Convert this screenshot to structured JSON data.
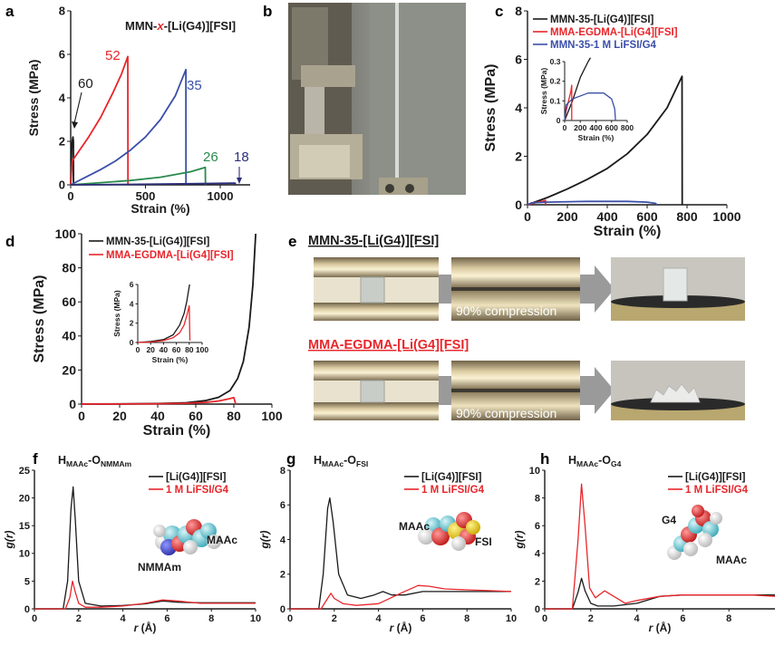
{
  "panel_letters": [
    "a",
    "b",
    "c",
    "d",
    "e",
    "f",
    "g",
    "h"
  ],
  "colors": {
    "black": "#1a1a1a",
    "red": "#e8262b",
    "blue": "#3a4fa8",
    "green": "#2a8a4e",
    "navy": "#2d2f7a"
  },
  "photo_e": {
    "title_top": "MMN-35-[Li(G4)][FSI]",
    "title_bottom": "MMA-EGDMA-[Li(G4][FSI]",
    "compression_label_top": "90% compression",
    "compression_label_bottom": "90% compression"
  },
  "chart_data": [
    {
      "panel": "a",
      "type": "line",
      "title_prefix": "MMN-",
      "title_x": "x",
      "title_suffix": "-[Li(G4)][FSI]",
      "xlabel": "Strain (%)",
      "ylabel": "Stress (MPa)",
      "xlim": [
        0,
        1200
      ],
      "ylim": [
        0,
        8
      ],
      "xticks": [
        0,
        500,
        1000
      ],
      "xtick_labels": [
        "0",
        "500",
        "1000"
      ],
      "yticks": [
        0,
        2,
        4,
        6,
        8
      ],
      "ytick_labels": [
        "0",
        "2",
        "4",
        "6",
        "8"
      ],
      "series": [
        {
          "name": "60",
          "color": "#1a1a1a",
          "x": [
            0,
            8,
            15,
            18,
            19
          ],
          "y": [
            0,
            1.9,
            2.2,
            2.0,
            0
          ]
        },
        {
          "name": "52",
          "color": "#e8262b",
          "x": [
            0,
            10,
            60,
            120,
            200,
            280,
            340,
            382,
            383
          ],
          "y": [
            0,
            1.1,
            1.6,
            2.2,
            3.1,
            4.2,
            5.1,
            5.9,
            0
          ]
        },
        {
          "name": "35",
          "color": "#3a4fa8",
          "x": [
            0,
            100,
            200,
            300,
            400,
            500,
            600,
            700,
            770,
            771
          ],
          "y": [
            0,
            0.35,
            0.7,
            1.1,
            1.6,
            2.2,
            3.0,
            4.1,
            5.3,
            0
          ]
        },
        {
          "name": "26",
          "color": "#2a8a4e",
          "x": [
            0,
            200,
            400,
            600,
            800,
            900,
            901
          ],
          "y": [
            0,
            0.1,
            0.2,
            0.35,
            0.6,
            0.8,
            0
          ]
        },
        {
          "name": "18",
          "color": "#2d2f7a",
          "x": [
            0,
            400,
            800,
            1100,
            1101
          ],
          "y": [
            0,
            0.02,
            0.05,
            0.08,
            0
          ]
        }
      ],
      "annotations": [
        "60",
        "52",
        "35",
        "26",
        "18"
      ]
    },
    {
      "panel": "c",
      "type": "line",
      "xlabel": "Strain (%)",
      "ylabel": "Stress (MPa)",
      "xlim": [
        0,
        1000
      ],
      "ylim": [
        0,
        8
      ],
      "xticks": [
        0,
        200,
        400,
        600,
        800,
        1000
      ],
      "xtick_labels": [
        "0",
        "200",
        "400",
        "600",
        "800",
        "1000"
      ],
      "yticks": [
        0,
        2,
        4,
        6,
        8
      ],
      "ytick_labels": [
        "0",
        "2",
        "4",
        "6",
        "8"
      ],
      "legend": "top-left",
      "series": [
        {
          "name": "MMN-35-[Li(G4)][FSI]",
          "color": "#1a1a1a",
          "x": [
            0,
            100,
            200,
            300,
            400,
            500,
            600,
            700,
            775,
            776
          ],
          "y": [
            0,
            0.3,
            0.65,
            1.05,
            1.5,
            2.1,
            2.9,
            4.0,
            5.3,
            0
          ]
        },
        {
          "name": "MMA-EGDMA-[Li(G4][FSI]",
          "color": "#e8262b",
          "x": [
            0,
            20,
            50,
            80,
            90,
            91
          ],
          "y": [
            0,
            0.05,
            0.1,
            0.15,
            0.18,
            0
          ]
        },
        {
          "name": "MMN-35-1 M LiFSI/G4",
          "color": "#3a4fa8",
          "x": [
            0,
            20,
            100,
            300,
            500,
            600,
            640,
            650
          ],
          "y": [
            0,
            0.08,
            0.11,
            0.14,
            0.14,
            0.11,
            0.06,
            0
          ]
        }
      ],
      "inset": {
        "xlabel": "Strain (%)",
        "ylabel": "Stress (MPa)",
        "xlim": [
          0,
          800
        ],
        "ylim": [
          0,
          0.3
        ],
        "xticks": [
          0,
          200,
          400,
          600,
          800
        ],
        "xtick_labels": [
          "0",
          "200",
          "400",
          "600",
          "800"
        ],
        "yticks": [
          0,
          0.1,
          0.2,
          0.3
        ],
        "ytick_labels": [
          "0",
          "0.1",
          "0.2",
          "0.3"
        ],
        "series": [
          {
            "color": "#1a1a1a",
            "x": [
              0,
              100,
              200,
              300,
              330
            ],
            "y": [
              0,
              0.1,
              0.22,
              0.3,
              0.32
            ]
          },
          {
            "color": "#e8262b",
            "x": [
              0,
              20,
              50,
              80,
              90,
              91
            ],
            "y": [
              0,
              0.05,
              0.1,
              0.15,
              0.18,
              0
            ]
          },
          {
            "color": "#3a4fa8",
            "x": [
              0,
              20,
              100,
              300,
              500,
              600,
              640,
              650
            ],
            "y": [
              0,
              0.08,
              0.11,
              0.14,
              0.14,
              0.11,
              0.06,
              0
            ]
          }
        ]
      }
    },
    {
      "panel": "d",
      "type": "line",
      "xlabel": "Strain (%)",
      "ylabel": "Stress (MPa)",
      "xlim": [
        0,
        100
      ],
      "ylim": [
        0,
        100
      ],
      "xticks": [
        0,
        20,
        40,
        60,
        80,
        100
      ],
      "xtick_labels": [
        "0",
        "20",
        "40",
        "60",
        "80",
        "100"
      ],
      "yticks": [
        0,
        20,
        40,
        60,
        80,
        100
      ],
      "ytick_labels": [
        "0",
        "20",
        "40",
        "60",
        "80",
        "100"
      ],
      "legend": "top-left",
      "series": [
        {
          "name": "MMN-35-[Li(G4)][FSI]",
          "color": "#1a1a1a",
          "x": [
            0,
            20,
            40,
            55,
            65,
            72,
            78,
            82,
            85,
            88,
            90,
            91.5
          ],
          "y": [
            0,
            0.1,
            0.3,
            0.8,
            2,
            4,
            8,
            15,
            25,
            45,
            70,
            100
          ]
        },
        {
          "name": "MMA-EGDMA-[Li(G4][FSI]",
          "color": "#e8262b",
          "x": [
            0,
            20,
            40,
            55,
            65,
            72,
            77,
            80,
            81
          ],
          "y": [
            0,
            0.05,
            0.2,
            0.5,
            1.0,
            1.8,
            3.0,
            3.8,
            0
          ]
        }
      ],
      "inset": {
        "xlabel": "Strain (%)",
        "ylabel": "Stress (MPa)",
        "xlim": [
          0,
          100
        ],
        "ylim": [
          0,
          6
        ],
        "xticks": [
          0,
          20,
          40,
          60,
          80,
          100
        ],
        "xtick_labels": [
          "0",
          "20",
          "40",
          "60",
          "80",
          "100"
        ],
        "yticks": [
          0,
          2,
          4,
          6
        ],
        "ytick_labels": [
          "0",
          "2",
          "4",
          "6"
        ],
        "series": [
          {
            "color": "#1a1a1a",
            "x": [
              0,
              20,
              40,
              55,
              65,
              72,
              76,
              79,
              80.5
            ],
            "y": [
              0,
              0.1,
              0.3,
              0.8,
              1.8,
              3.0,
              4.2,
              5.4,
              6
            ]
          },
          {
            "color": "#e8262b",
            "x": [
              0,
              20,
              40,
              55,
              65,
              72,
              77,
              80,
              81
            ],
            "y": [
              0,
              0.05,
              0.2,
              0.5,
              1.0,
              1.8,
              3.0,
              3.8,
              0.2
            ]
          }
        ]
      }
    },
    {
      "panel": "f",
      "type": "line",
      "title_main": "H",
      "title_sub1": "MAAc",
      "title_mid": "-O",
      "title_sub2": "NMMAm",
      "xlabel_sym": "r",
      "xlabel_rest": " (Å)",
      "ylabel": "g(r)",
      "xlim": [
        0,
        10
      ],
      "ylim": [
        0,
        25
      ],
      "xticks": [
        0,
        2,
        4,
        6,
        8,
        10
      ],
      "xtick_labels": [
        "0",
        "2",
        "4",
        "6",
        "8",
        "10"
      ],
      "yticks": [
        0,
        5,
        10,
        15,
        20,
        25
      ],
      "ytick_labels": [
        "0",
        "5",
        "10",
        "15",
        "20",
        "25"
      ],
      "legend": "top-right",
      "molecule_labels": [
        "MAAc",
        "NMMAm"
      ],
      "series": [
        {
          "name": "[Li(G4)][FSI]",
          "color": "#1a1a1a",
          "x": [
            0,
            1.3,
            1.5,
            1.65,
            1.75,
            1.85,
            2.0,
            2.3,
            3.0,
            4.0,
            5.0,
            5.8,
            6.5,
            7.5,
            8.5,
            10
          ],
          "y": [
            0,
            0,
            5,
            18,
            22,
            16,
            5,
            1,
            0.5,
            0.6,
            0.9,
            1.4,
            1.2,
            1.1,
            1.1,
            1.1
          ]
        },
        {
          "name": "1 M LiFSI/G4",
          "color": "#e8262b",
          "x": [
            0,
            1.4,
            1.6,
            1.72,
            1.85,
            2.0,
            2.3,
            3.0,
            4.0,
            5.0,
            5.8,
            6.5,
            7.5,
            8.5,
            10
          ],
          "y": [
            0,
            0,
            2,
            5,
            3,
            1,
            0.3,
            0.3,
            0.5,
            1.0,
            1.6,
            1.4,
            1.0,
            1.0,
            1.0
          ]
        }
      ]
    },
    {
      "panel": "g",
      "type": "line",
      "title_main": "H",
      "title_sub1": "MAAc",
      "title_mid": "-O",
      "title_sub2": "FSI",
      "xlabel_sym": "r",
      "xlabel_rest": " (Å)",
      "ylabel": "g(r)",
      "xlim": [
        0,
        10
      ],
      "ylim": [
        0,
        8
      ],
      "xticks": [
        0,
        2,
        4,
        6,
        8,
        10
      ],
      "xtick_labels": [
        "0",
        "2",
        "4",
        "6",
        "8",
        "10"
      ],
      "yticks": [
        0,
        2,
        4,
        6,
        8
      ],
      "ytick_labels": [
        "0",
        "2",
        "4",
        "6",
        "8"
      ],
      "legend": "top-right",
      "molecule_labels": [
        "MAAc",
        "FSI"
      ],
      "series": [
        {
          "name": "[Li(G4)][FSI]",
          "color": "#1a1a1a",
          "x": [
            0,
            1.3,
            1.5,
            1.7,
            1.8,
            1.95,
            2.2,
            2.6,
            3.2,
            3.8,
            4.2,
            4.6,
            5.2,
            6.0,
            7.0,
            8.0,
            10
          ],
          "y": [
            0,
            0,
            2,
            5.8,
            6.4,
            5.0,
            2.0,
            0.8,
            0.6,
            0.8,
            1.0,
            0.8,
            0.8,
            1.0,
            1.0,
            1.0,
            1.0
          ]
        },
        {
          "name": "1 M LiFSI/G4",
          "color": "#e8262b",
          "x": [
            0,
            1.4,
            1.7,
            1.85,
            2.0,
            2.4,
            3.0,
            4.0,
            5.0,
            5.8,
            6.3,
            7.0,
            8.0,
            9.0,
            10
          ],
          "y": [
            0,
            0,
            0.6,
            0.9,
            0.6,
            0.3,
            0.2,
            0.3,
            0.9,
            1.35,
            1.3,
            1.15,
            1.1,
            1.05,
            1.0
          ]
        }
      ]
    },
    {
      "panel": "h",
      "type": "line",
      "title_main": "H",
      "title_sub1": "MAAc",
      "title_mid": "-O",
      "title_sub2": "G4",
      "xlabel_sym": "r",
      "xlabel_rest": " (Å)",
      "ylabel": "g(r)",
      "xlim": [
        0,
        10
      ],
      "ylim": [
        0,
        10
      ],
      "xticks": [
        0,
        2,
        4,
        6,
        8
      ],
      "xtick_labels": [
        "0",
        "2",
        "4",
        "6",
        "8"
      ],
      "yticks": [
        0,
        2,
        4,
        6,
        8,
        10
      ],
      "ytick_labels": [
        "0",
        "2",
        "4",
        "6",
        "8",
        "10"
      ],
      "legend": "top-right",
      "molecule_labels": [
        "G4",
        "MAAc"
      ],
      "series": [
        {
          "name": "[Li(G4)][FSI]",
          "color": "#1a1a1a",
          "x": [
            0,
            1.2,
            1.45,
            1.6,
            1.75,
            2.0,
            2.3,
            3.0,
            4.0,
            5.0,
            6.0,
            7.0,
            8.0,
            9.0,
            10
          ],
          "y": [
            0,
            0,
            1.2,
            2.2,
            1.3,
            0.4,
            0.2,
            0.2,
            0.4,
            0.9,
            1.0,
            1.0,
            1.0,
            1.0,
            1.0
          ]
        },
        {
          "name": "1 M LiFSI/G4",
          "color": "#e8262b",
          "x": [
            0,
            1.2,
            1.45,
            1.6,
            1.75,
            1.95,
            2.2,
            2.6,
            3.0,
            3.5,
            4.0,
            5.0,
            6.0,
            7.0,
            8.0,
            9.0,
            10
          ],
          "y": [
            0,
            0,
            5,
            9,
            6,
            1.5,
            0.8,
            1.3,
            0.9,
            0.4,
            0.6,
            0.9,
            1.0,
            1.0,
            1.0,
            1.0,
            0.9
          ]
        }
      ]
    }
  ]
}
